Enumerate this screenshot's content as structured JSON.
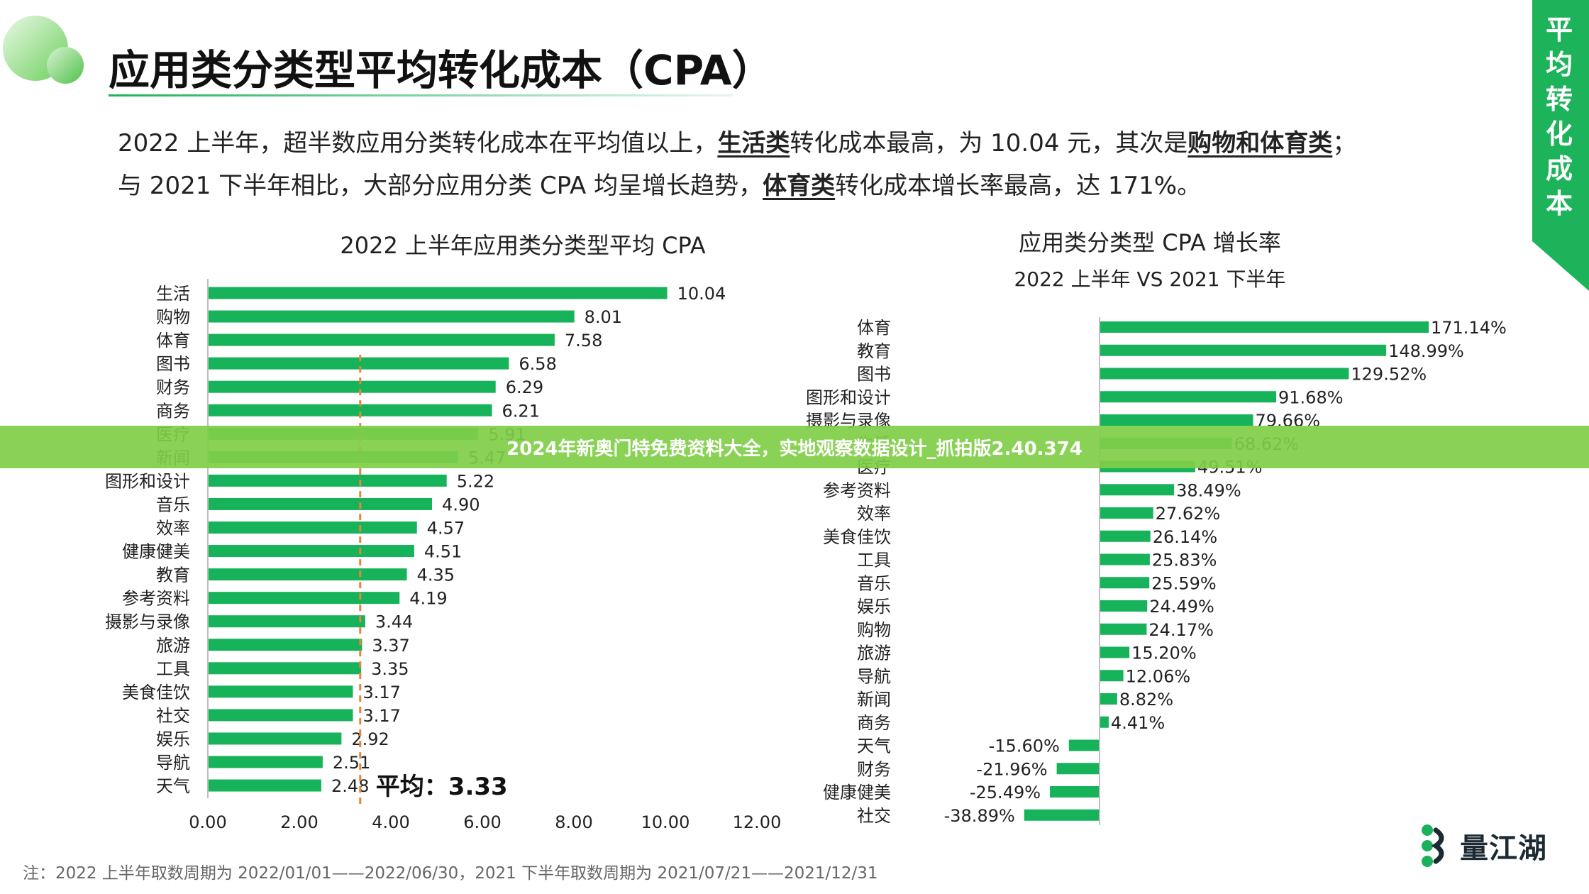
{
  "page": {
    "title": "应用类分类型平均转化成本（CPA）",
    "side_label": "平均转化成本",
    "summary": {
      "l1_a": "2022 上半年，超半数应用分类转化成本在平均值以上，",
      "l1_b": "生活类",
      "l1_c": "转化成本最高，为 10.04 元，其次是",
      "l1_d": "购物和体育类",
      "l1_e": "；",
      "l2_a": "与 2021 下半年相比，大部分应用分类 CPA 均呈增长趋势，",
      "l2_b": "体育类",
      "l2_c": "转化成本增长率最高，达 171%。"
    },
    "note": "注：2022 上半年取数周期为 2022/01/01——2022/06/30，2021 下半年取数周期为 2021/07/21——2021/12/31",
    "brand": "量江湖",
    "banner": "2024年新奥门特免费资料大全，实地观察数据设计_抓拍版2.40.374",
    "colors": {
      "bar": "#17b35a",
      "average_line": "#e8843b",
      "accent": "#1db35a",
      "banner": "#80ce48"
    }
  },
  "chart_data": [
    {
      "type": "bar",
      "orientation": "horizontal",
      "title": "2022 上半年应用类分类型平均 CPA",
      "categories": [
        "生活",
        "购物",
        "体育",
        "图书",
        "财务",
        "商务",
        "医疗",
        "新闻",
        "图形和设计",
        "音乐",
        "效率",
        "健康健美",
        "教育",
        "参考资料",
        "摄影与录像",
        "旅游",
        "工具",
        "美食佳饮",
        "社交",
        "娱乐",
        "导航",
        "天气"
      ],
      "values": [
        10.04,
        8.01,
        7.58,
        6.58,
        6.29,
        6.21,
        5.91,
        5.47,
        5.22,
        4.9,
        4.57,
        4.51,
        4.35,
        4.19,
        3.44,
        3.37,
        3.35,
        3.17,
        3.17,
        2.92,
        2.51,
        2.48
      ],
      "value_labels": [
        "10.04",
        "8.01",
        "7.58",
        "6.58",
        "6.29",
        "6.21",
        "5.91",
        "5.47",
        "5.22",
        "4.90",
        "4.57",
        "4.51",
        "4.35",
        "4.19",
        "3.44",
        "3.37",
        "3.35",
        "3.17",
        "3.17",
        "2.92",
        "2.51",
        "2.48"
      ],
      "xlim": [
        0,
        12
      ],
      "x_ticks": [
        "0.00",
        "2.00",
        "4.00",
        "6.00",
        "8.00",
        "10.00",
        "12.00"
      ],
      "average": 3.33,
      "average_label": "平均：3.33",
      "grid": false
    },
    {
      "type": "bar",
      "orientation": "horizontal",
      "title": "应用类分类型 CPA 增长率",
      "subtitle": "2022 上半年 VS 2021 下半年",
      "categories": [
        "体育",
        "教育",
        "图书",
        "图形和设计",
        "摄影与录像",
        "生活",
        "医疗",
        "参考资料",
        "效率",
        "美食佳饮",
        "工具",
        "音乐",
        "娱乐",
        "购物",
        "旅游",
        "导航",
        "新闻",
        "商务",
        "天气",
        "财务",
        "健康健美",
        "社交"
      ],
      "values": [
        171.14,
        148.99,
        129.52,
        91.68,
        79.66,
        68.62,
        49.51,
        38.49,
        27.62,
        26.14,
        25.83,
        25.59,
        24.49,
        24.17,
        15.2,
        12.06,
        8.82,
        4.41,
        -15.6,
        -21.96,
        -25.49,
        -38.89
      ],
      "value_labels": [
        "171.14%",
        "148.99%",
        "129.52%",
        "91.68%",
        "79.66%",
        "68.62%",
        "49.51%",
        "38.49%",
        "27.62%",
        "26.14%",
        "25.83%",
        "25.59%",
        "24.49%",
        "24.17%",
        "15.20%",
        "12.06%",
        "8.82%",
        "4.41%",
        "-15.60%",
        "-21.96%",
        "-25.49%",
        "-38.89%"
      ],
      "unit": "%",
      "grid": false
    }
  ]
}
